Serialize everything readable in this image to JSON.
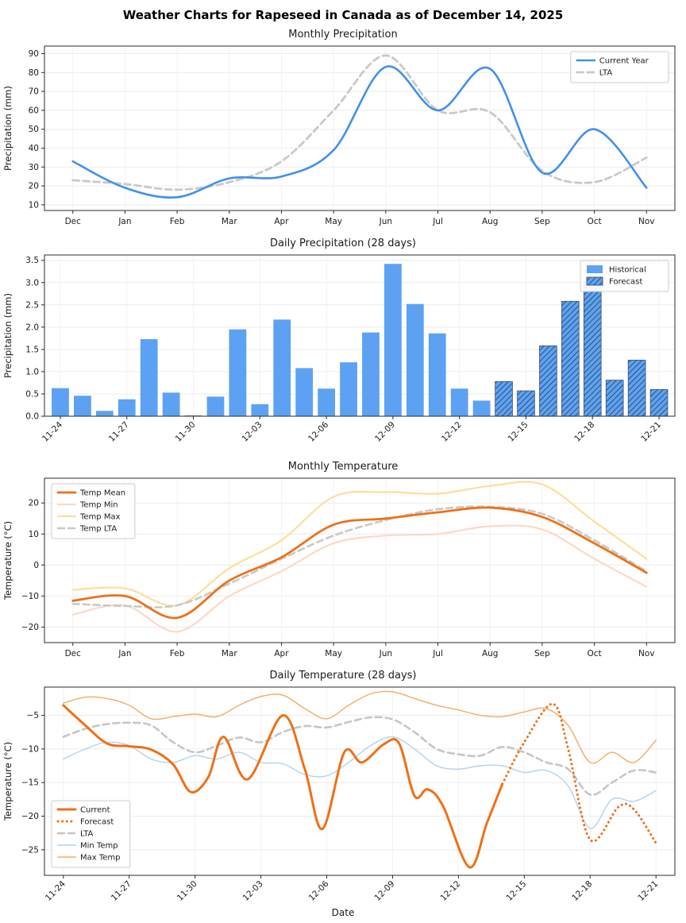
{
  "figure_title": "Weather Charts for Rapeseed in Canada as of December 14, 2025",
  "chart_data": [
    {
      "type": "line",
      "title": "Monthly Precipitation",
      "ylabel": "Precipitation (mm)",
      "categories": [
        "Dec",
        "Jan",
        "Feb",
        "Mar",
        "Apr",
        "May",
        "Jun",
        "Jul",
        "Aug",
        "Sep",
        "Oct",
        "Nov"
      ],
      "ylim": [
        7,
        94
      ],
      "yticks": [
        10,
        20,
        30,
        40,
        50,
        60,
        70,
        80,
        90
      ],
      "ytick_labels": [
        "10",
        "20",
        "30",
        "40",
        "50",
        "60",
        "70",
        "80",
        "90"
      ],
      "xpad": 0.045,
      "rotate_xticks": false,
      "legend": {
        "pos": "ne"
      },
      "series": [
        {
          "name": "Current Year",
          "color": "#4190ec",
          "width": 2.6,
          "dash": "",
          "values": [
            33,
            19,
            14,
            24,
            25,
            39,
            83,
            60,
            82,
            27,
            50,
            19
          ]
        },
        {
          "name": "LTA",
          "color": "#c9c9c9",
          "width": 2.8,
          "dash": "8 5",
          "values": [
            23,
            21,
            18,
            22,
            33,
            60,
            89,
            60,
            59,
            28,
            22,
            35
          ]
        }
      ],
      "draw_order": [
        1,
        0
      ]
    },
    {
      "type": "bar",
      "title": "Daily Precipitation (28 days)",
      "ylabel": "Precipitation (mm)",
      "dates": [
        "11-24",
        "11-25",
        "11-26",
        "11-27",
        "11-28",
        "11-29",
        "11-30",
        "12-01",
        "12-02",
        "12-03",
        "12-04",
        "12-05",
        "12-06",
        "12-07",
        "12-08",
        "12-09",
        "12-10",
        "12-11",
        "12-12",
        "12-13",
        "12-14",
        "12-15",
        "12-16",
        "12-17",
        "12-18",
        "12-19",
        "12-20",
        "12-21"
      ],
      "values": [
        0.63,
        0.46,
        0.12,
        0.38,
        1.73,
        0.53,
        0.02,
        0.44,
        1.95,
        0.27,
        2.17,
        1.08,
        0.62,
        1.21,
        1.88,
        3.42,
        2.52,
        1.86,
        0.62,
        0.35,
        0.78,
        0.57,
        1.58,
        2.58,
        3.03,
        0.81,
        1.26,
        0.6
      ],
      "forecast_start_index": 20,
      "bar_color": "#5da2f2",
      "hatch_color": "#22354f",
      "ylim": [
        0,
        3.62
      ],
      "yticks": [
        0,
        0.5,
        1,
        1.5,
        2,
        2.5,
        3,
        3.5
      ],
      "ytick_labels": [
        "0.0",
        "0.5",
        "1.0",
        "1.5",
        "2.0",
        "2.5",
        "3.0",
        "3.5"
      ],
      "xtick_pos": [
        0,
        3,
        6,
        9,
        12,
        15,
        18,
        21,
        24,
        27
      ],
      "xtick_labels": [
        "11-24",
        "11-27",
        "11-30",
        "12-03",
        "12-06",
        "12-09",
        "12-12",
        "12-15",
        "12-18",
        "12-21"
      ],
      "rotate_xticks": true,
      "legend": {
        "pos": "ne"
      },
      "legend_labels": {
        "historical": "Historical",
        "forecast": "Forecast"
      }
    },
    {
      "type": "line",
      "title": "Monthly Temperature",
      "ylabel": "Temperature (°C)",
      "categories": [
        "Dec",
        "Jan",
        "Feb",
        "Mar",
        "Apr",
        "May",
        "Jun",
        "Jul",
        "Aug",
        "Sep",
        "Oct",
        "Nov"
      ],
      "ylim": [
        -25,
        28
      ],
      "yticks": [
        -20,
        -10,
        0,
        10,
        20
      ],
      "ytick_labels": [
        "−20",
        "−10",
        "0",
        "10",
        "20"
      ],
      "xpad": 0.045,
      "rotate_xticks": false,
      "legend": {
        "pos": "nw"
      },
      "series": [
        {
          "name": "Temp Mean",
          "color": "#ee7118",
          "width": 2.8,
          "dash": "",
          "values": [
            -11.5,
            -10,
            -17,
            -5,
            2.5,
            13,
            15,
            17,
            18.5,
            15.5,
            7,
            -2.5
          ]
        },
        {
          "name": "Temp Min",
          "color": "#fcd9c4",
          "width": 2.2,
          "dash": "",
          "values": [
            -16,
            -13,
            -21.5,
            -10,
            -2,
            7,
            9.5,
            10,
            12.5,
            11.5,
            2,
            -7
          ]
        },
        {
          "name": "Temp Max",
          "color": "#fcdf9c",
          "width": 2.2,
          "dash": "",
          "values": [
            -8,
            -7.5,
            -13,
            -1,
            8,
            22,
            23.5,
            23,
            25.5,
            26,
            14,
            2
          ]
        },
        {
          "name": "Temp LTA",
          "color": "#c9c9c9",
          "width": 2.6,
          "dash": "8 5",
          "values": [
            -12.5,
            -13.2,
            -13,
            -6,
            2,
            9.5,
            14.5,
            18,
            18.8,
            16.5,
            8,
            -2
          ]
        }
      ],
      "draw_order": [
        2,
        1,
        3,
        0
      ]
    },
    {
      "type": "line",
      "title": "Daily Temperature (28 days)",
      "ylabel": "Temperature (°C)",
      "xlabel": "Date",
      "x_count": 28,
      "xtick_pos": [
        0,
        3,
        6,
        9,
        12,
        15,
        18,
        21,
        24,
        27
      ],
      "xtick_labels": [
        "11-24",
        "11-27",
        "11-30",
        "12-03",
        "12-06",
        "12-09",
        "12-12",
        "12-15",
        "12-18",
        "12-21"
      ],
      "ylim": [
        -28.8,
        -0.8
      ],
      "yticks": [
        -25,
        -20,
        -15,
        -10,
        -5
      ],
      "ytick_labels": [
        "−25",
        "−20",
        "−15",
        "−10",
        "−5"
      ],
      "xpad": 0.03,
      "rotate_xticks": true,
      "legend": {
        "pos": "sw"
      },
      "series": [
        {
          "name": "Current",
          "color": "#f06f15",
          "width": 3,
          "dash": "",
          "x": [
            0,
            1,
            2,
            3,
            4,
            5,
            5.8,
            6.6,
            7.3,
            8.4,
            10,
            11,
            11.8,
            12.8,
            13.6,
            14.6,
            15.3,
            16,
            16.6,
            17.3,
            18.5,
            19.3,
            20
          ],
          "values": [
            -3.5,
            -6.5,
            -9.2,
            -9.6,
            -10.1,
            -12.3,
            -16.4,
            -14.2,
            -8.2,
            -14.5,
            -5.0,
            -13,
            -21.9,
            -10.5,
            -12.0,
            -9.3,
            -9.2,
            -17.0,
            -16.0,
            -18.5,
            -27.6,
            -21,
            -15.2
          ]
        },
        {
          "name": "Forecast",
          "color": "#f06f15",
          "width": 3,
          "dash": "0.1 5.5",
          "x": [
            20,
            21,
            22.3,
            23,
            24,
            25.3,
            26,
            27
          ],
          "values": [
            -15.2,
            -9,
            -3.3,
            -10,
            -23.5,
            -18.6,
            -19,
            -24
          ]
        },
        {
          "name": "LTA",
          "color": "#c6c6c6",
          "width": 2.6,
          "dash": "8 5",
          "values": [
            -8.2,
            -7.0,
            -6.3,
            -6.1,
            -6.5,
            -9.0,
            -10.5,
            -9.5,
            -8.3,
            -9.0,
            -7.5,
            -6.6,
            -6.8,
            -6.0,
            -5.3,
            -5.6,
            -7.5,
            -10.0,
            -10.8,
            -11.0,
            -9.7,
            -10.5,
            -12.0,
            -13.0,
            -16.8,
            -15.0,
            -13.2,
            -13.5
          ]
        },
        {
          "name": "Min Temp",
          "color": "#aed4ef",
          "width": 1.4,
          "dash": "",
          "values": [
            -11.5,
            -10.0,
            -9.0,
            -9.5,
            -11.5,
            -12.0,
            -11.0,
            -11.5,
            -10.5,
            -12.0,
            -12.2,
            -13.8,
            -14.0,
            -12.0,
            -9.5,
            -8.2,
            -10.0,
            -12.5,
            -13.0,
            -12.5,
            -12.5,
            -13.5,
            -13.2,
            -15.5,
            -21.8,
            -17.5,
            -17.8,
            -16.2
          ]
        },
        {
          "name": "Max Temp",
          "color": "#f6aa63",
          "width": 1.4,
          "dash": "",
          "values": [
            -3.2,
            -2.3,
            -2.5,
            -3.5,
            -5.5,
            -5.2,
            -4.8,
            -5.2,
            -3.5,
            -2.2,
            -2.0,
            -4.0,
            -5.5,
            -3.5,
            -1.8,
            -1.5,
            -2.5,
            -3.5,
            -4.2,
            -5.0,
            -5.2,
            -4.5,
            -4.0,
            -6.5,
            -12.0,
            -10.5,
            -12.0,
            -8.7
          ]
        }
      ],
      "draw_order": [
        4,
        3,
        2,
        0,
        1
      ]
    }
  ]
}
